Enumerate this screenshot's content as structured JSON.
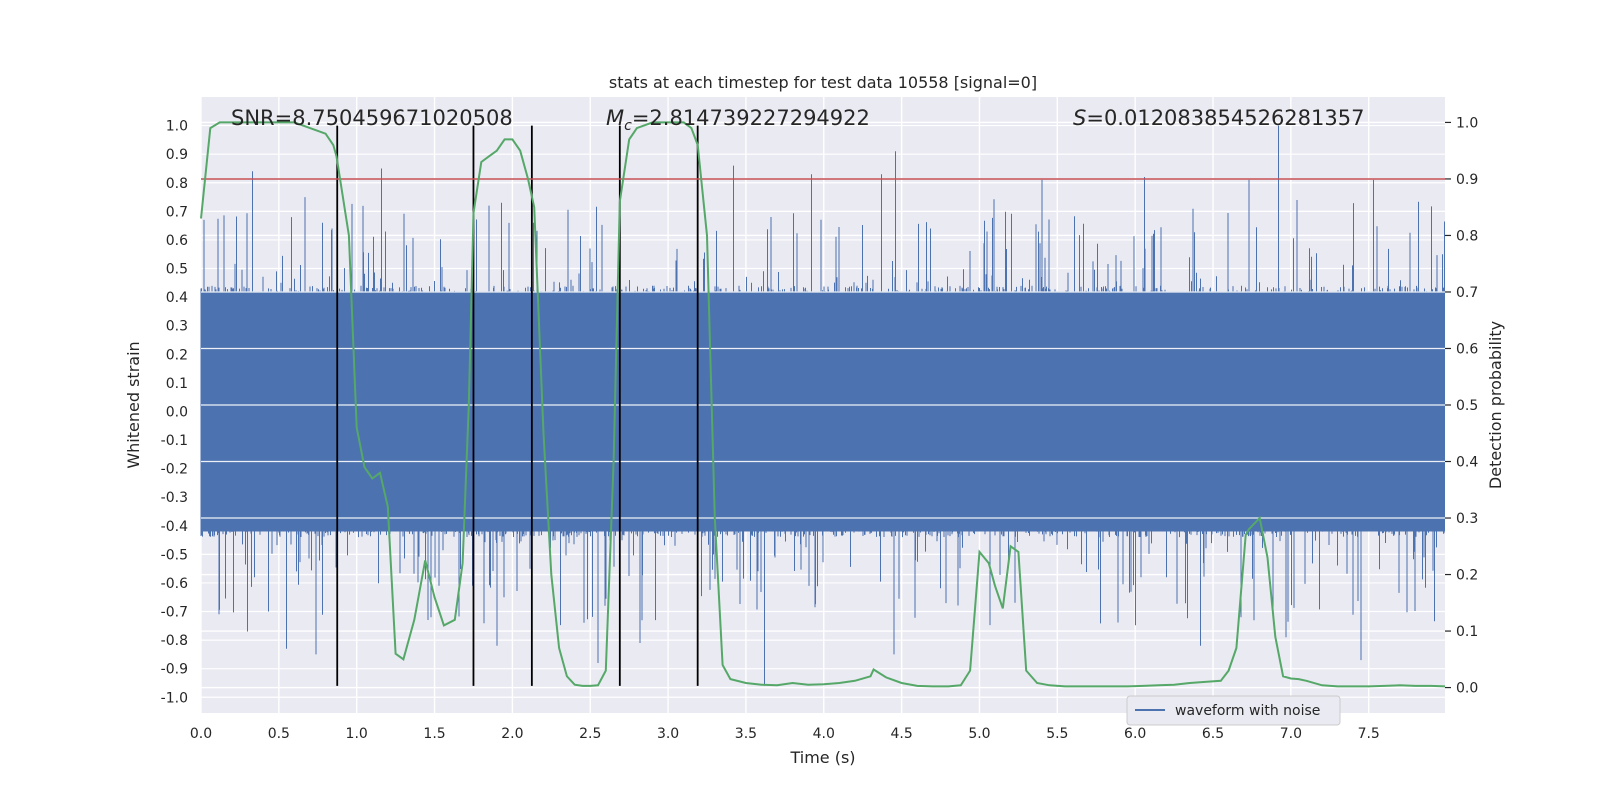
{
  "chart_data": {
    "type": "line",
    "title": "stats at each timestep for test data 10558 [signal=0]",
    "xlabel": "Time (s)",
    "ylabel_left": "Whitened strain",
    "ylabel_right": "Detection probability",
    "xlim": [
      0.0,
      7.99
    ],
    "ylim_left": [
      -1.055,
      1.1
    ],
    "ylim_right": [
      -0.045,
      1.045
    ],
    "x_ticks": [
      "0.0",
      "0.5",
      "1.0",
      "1.5",
      "2.0",
      "2.5",
      "3.0",
      "3.5",
      "4.0",
      "4.5",
      "5.0",
      "5.5",
      "6.0",
      "6.5",
      "7.0",
      "7.5"
    ],
    "y_ticks_left": [
      "-1.0",
      "-0.9",
      "-0.8",
      "-0.7",
      "-0.6",
      "-0.5",
      "-0.4",
      "-0.3",
      "-0.2",
      "-0.1",
      "0.0",
      "0.1",
      "0.2",
      "0.3",
      "0.4",
      "0.5",
      "0.6",
      "0.7",
      "0.8",
      "0.9",
      "1.0"
    ],
    "y_ticks_right": [
      "0.0",
      "0.1",
      "0.2",
      "0.3",
      "0.4",
      "0.5",
      "0.6",
      "0.7",
      "0.8",
      "0.9",
      "1.0"
    ],
    "grid": true,
    "legend": {
      "placement": "lower-right",
      "entries": [
        "waveform with noise"
      ]
    },
    "annotations": {
      "snr": "SNR=8.750459671020508",
      "mc_symbol": "M",
      "mc_sub": "c",
      "mc_value": "=2.814739227294922",
      "s_symbol": "S",
      "s_value": "=0.012083854526281357"
    },
    "threshold": {
      "axis": "right",
      "value": 0.9,
      "color": "#c44e52"
    },
    "vertical_lines": [
      0.875,
      1.75,
      2.125,
      2.69,
      3.19
    ],
    "vertical_line_range_left": [
      -0.96,
      1.0
    ],
    "series": [
      {
        "name": "waveform with noise",
        "axis": "left",
        "color": "#4c72b0",
        "kind": "noise-strain",
        "x_range": [
          0.0,
          7.99
        ],
        "core_envelope": [
          -0.42,
          0.42
        ],
        "peaks": [
          {
            "x": 0.02,
            "y": 0.67
          },
          {
            "x": 0.33,
            "y": 0.84
          },
          {
            "x": 0.58,
            "y": 0.68
          },
          {
            "x": 0.78,
            "y": 0.66
          },
          {
            "x": 0.84,
            "y": 0.64
          },
          {
            "x": 1.16,
            "y": 0.85
          },
          {
            "x": 1.85,
            "y": 0.72
          },
          {
            "x": 1.93,
            "y": 0.73
          },
          {
            "x": 3.42,
            "y": 0.86
          },
          {
            "x": 4.46,
            "y": 0.91
          },
          {
            "x": 4.37,
            "y": 0.83
          },
          {
            "x": 6.92,
            "y": 1.0
          },
          {
            "x": 3.92,
            "y": 0.83
          },
          {
            "x": 5.4,
            "y": 0.81
          },
          {
            "x": 6.06,
            "y": 0.82
          },
          {
            "x": 6.73,
            "y": 0.81
          },
          {
            "x": 7.53,
            "y": 0.81
          }
        ],
        "troughs": [
          {
            "x": 0.3,
            "y": -0.77
          },
          {
            "x": 0.55,
            "y": -0.83
          },
          {
            "x": 0.74,
            "y": -0.85
          },
          {
            "x": 1.9,
            "y": -0.82
          },
          {
            "x": 2.55,
            "y": -0.88
          },
          {
            "x": 2.82,
            "y": -0.81
          },
          {
            "x": 3.62,
            "y": -0.96
          },
          {
            "x": 4.45,
            "y": -0.85
          },
          {
            "x": 6.42,
            "y": -0.82
          },
          {
            "x": 6.97,
            "y": -0.79
          },
          {
            "x": 7.45,
            "y": -0.87
          },
          {
            "x": 6.68,
            "y": -0.72
          }
        ]
      },
      {
        "name": "",
        "axis": "right",
        "color": "#55a868",
        "x": [
          0.0,
          0.06,
          0.12,
          0.2,
          0.3,
          0.4,
          0.5,
          0.6,
          0.7,
          0.8,
          0.85,
          0.87,
          0.95,
          1.0,
          1.05,
          1.1,
          1.15,
          1.2,
          1.25,
          1.3,
          1.37,
          1.44,
          1.5,
          1.56,
          1.63,
          1.68,
          1.72,
          1.75,
          1.8,
          1.85,
          1.9,
          1.95,
          2.0,
          2.05,
          2.1,
          2.14,
          2.2,
          2.25,
          2.3,
          2.35,
          2.4,
          2.45,
          2.5,
          2.55,
          2.6,
          2.65,
          2.69,
          2.75,
          2.8,
          2.9,
          3.0,
          3.1,
          3.15,
          3.19,
          3.25,
          3.3,
          3.35,
          3.4,
          3.5,
          3.6,
          3.7,
          3.8,
          3.9,
          4.0,
          4.1,
          4.2,
          4.3,
          4.32,
          4.4,
          4.5,
          4.6,
          4.7,
          4.8,
          4.88,
          4.94,
          5.0,
          5.06,
          5.1,
          5.15,
          5.2,
          5.25,
          5.3,
          5.37,
          5.45,
          5.55,
          5.65,
          5.75,
          5.85,
          5.95,
          6.05,
          6.15,
          6.25,
          6.35,
          6.45,
          6.55,
          6.6,
          6.65,
          6.71,
          6.73,
          6.8,
          6.85,
          6.9,
          6.95,
          7.0,
          7.05,
          7.1,
          7.2,
          7.3,
          7.4,
          7.5,
          7.6,
          7.7,
          7.8,
          7.9,
          7.99
        ],
        "y": [
          0.83,
          0.99,
          1.0,
          1.0,
          1.0,
          1.0,
          1.0,
          1.0,
          0.99,
          0.98,
          0.96,
          0.94,
          0.8,
          0.46,
          0.39,
          0.37,
          0.38,
          0.32,
          0.06,
          0.05,
          0.12,
          0.225,
          0.16,
          0.11,
          0.12,
          0.22,
          0.5,
          0.84,
          0.93,
          0.94,
          0.95,
          0.97,
          0.97,
          0.95,
          0.9,
          0.85,
          0.45,
          0.2,
          0.07,
          0.02,
          0.005,
          0.003,
          0.003,
          0.004,
          0.03,
          0.4,
          0.86,
          0.97,
          0.99,
          1.0,
          1.0,
          1.0,
          0.99,
          0.96,
          0.8,
          0.3,
          0.04,
          0.015,
          0.008,
          0.005,
          0.004,
          0.008,
          0.005,
          0.006,
          0.008,
          0.012,
          0.02,
          0.032,
          0.018,
          0.008,
          0.003,
          0.002,
          0.002,
          0.004,
          0.03,
          0.24,
          0.22,
          0.18,
          0.14,
          0.25,
          0.24,
          0.03,
          0.008,
          0.004,
          0.002,
          0.002,
          0.002,
          0.002,
          0.002,
          0.003,
          0.004,
          0.005,
          0.008,
          0.01,
          0.012,
          0.03,
          0.07,
          0.27,
          0.28,
          0.3,
          0.23,
          0.09,
          0.02,
          0.016,
          0.015,
          0.012,
          0.004,
          0.002,
          0.002,
          0.002,
          0.003,
          0.004,
          0.003,
          0.003,
          0.002
        ]
      }
    ]
  }
}
